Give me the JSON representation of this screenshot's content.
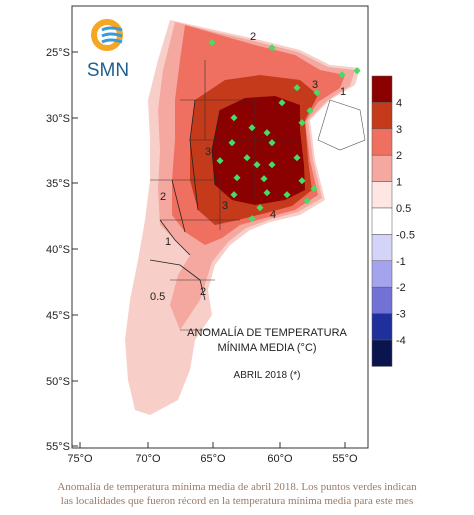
{
  "logo": {
    "text": "SMN"
  },
  "map": {
    "title_line1": "ANOMALÍA DE TEMPERATURA",
    "title_line2": "MÍNIMA MEDIA (°C)",
    "period": "ABRIL 2018 (*)",
    "lat_labels": [
      "25°S",
      "30°S",
      "35°S",
      "40°S",
      "45°S",
      "50°S",
      "55°S"
    ],
    "lon_labels": [
      "75°O",
      "70°O",
      "65°O",
      "60°O",
      "55°O"
    ],
    "contour_labels": [
      "0.5",
      "1",
      "1",
      "2",
      "2",
      "3",
      "3",
      "3",
      "4",
      "2"
    ],
    "legend": {
      "colors": [
        "#8b0000",
        "#c43a1a",
        "#ef7060",
        "#f4a8a0",
        "#fde6e4",
        "#ffffff",
        "#d4d4f8",
        "#a4a4ee",
        "#7272d6",
        "#1f2f9c",
        "#0a1550"
      ],
      "labels": [
        "4",
        "3",
        "2",
        "1",
        "0.5",
        "-0.5",
        "-1",
        "-2",
        "-3",
        "-4"
      ]
    },
    "record_marker_color": "#44dd66"
  },
  "caption": {
    "line1": "Anomalía de temperatura mínima media de abril 2018. Los puntos verdes indican",
    "line2": "las localidades que fueron récord en la temperatura mínima media para este mes"
  }
}
